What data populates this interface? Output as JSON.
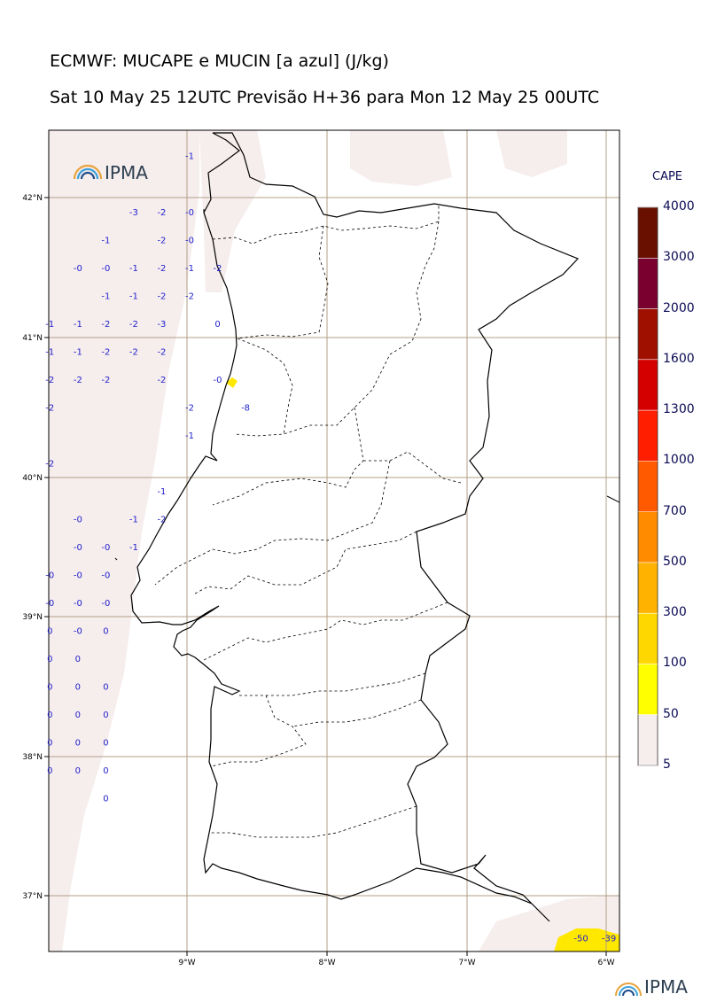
{
  "title": {
    "line1": "ECMWF: MUCAPE e MUCIN [a azul] (J/kg)",
    "line2": "Sat 10 May 25 12UTC Previsão H+36 para Mon 12 May 25 00UTC"
  },
  "logo": {
    "text": "IPMA",
    "icon": "rainbow-arc-icon"
  },
  "axes": {
    "lat_labels": [
      "42°N",
      "41°N",
      "40°N",
      "39°N",
      "38°N",
      "37°N"
    ],
    "lon_labels": [
      "9°W",
      "8°W",
      "7°W",
      "6°W"
    ],
    "lon_range": [
      -10,
      -5.9
    ],
    "lat_range": [
      36.6,
      42.48
    ]
  },
  "colorbar": {
    "title": "CAPE",
    "levels": [
      5,
      50,
      100,
      300,
      500,
      700,
      1000,
      1300,
      1600,
      2000,
      3000,
      4000
    ],
    "colors": [
      "#f6eded",
      "#ffff00",
      "#ffd700",
      "#ffb300",
      "#ff8c00",
      "#ff5a00",
      "#ff1e00",
      "#d40000",
      "#a01000",
      "#7a0030",
      "#6a1000"
    ]
  },
  "cin_values": [
    {
      "lon": -9.0,
      "lat": 42.3,
      "v": "-1"
    },
    {
      "lon": -9.4,
      "lat": 41.9,
      "v": "-3"
    },
    {
      "lon": -9.2,
      "lat": 41.9,
      "v": "-2"
    },
    {
      "lon": -9.0,
      "lat": 41.9,
      "v": "-0"
    },
    {
      "lon": -9.6,
      "lat": 41.7,
      "v": "-1"
    },
    {
      "lon": -9.2,
      "lat": 41.7,
      "v": "-2"
    },
    {
      "lon": -9.0,
      "lat": 41.7,
      "v": "-0"
    },
    {
      "lon": -9.8,
      "lat": 41.5,
      "v": "-0"
    },
    {
      "lon": -9.6,
      "lat": 41.5,
      "v": "-0"
    },
    {
      "lon": -9.4,
      "lat": 41.5,
      "v": "-1"
    },
    {
      "lon": -9.2,
      "lat": 41.5,
      "v": "-2"
    },
    {
      "lon": -9.0,
      "lat": 41.5,
      "v": "-1"
    },
    {
      "lon": -8.8,
      "lat": 41.5,
      "v": "-2"
    },
    {
      "lon": -9.6,
      "lat": 41.3,
      "v": "-1"
    },
    {
      "lon": -9.4,
      "lat": 41.3,
      "v": "-1"
    },
    {
      "lon": -9.2,
      "lat": 41.3,
      "v": "-2"
    },
    {
      "lon": -9.0,
      "lat": 41.3,
      "v": "-2"
    },
    {
      "lon": -10.0,
      "lat": 41.1,
      "v": "-1"
    },
    {
      "lon": -9.8,
      "lat": 41.1,
      "v": "-1"
    },
    {
      "lon": -9.6,
      "lat": 41.1,
      "v": "-2"
    },
    {
      "lon": -9.4,
      "lat": 41.1,
      "v": "-2"
    },
    {
      "lon": -9.2,
      "lat": 41.1,
      "v": "-3"
    },
    {
      "lon": -8.8,
      "lat": 41.1,
      "v": "0"
    },
    {
      "lon": -10.0,
      "lat": 40.9,
      "v": "-1"
    },
    {
      "lon": -9.8,
      "lat": 40.9,
      "v": "-1"
    },
    {
      "lon": -9.6,
      "lat": 40.9,
      "v": "-2"
    },
    {
      "lon": -9.4,
      "lat": 40.9,
      "v": "-2"
    },
    {
      "lon": -9.2,
      "lat": 40.9,
      "v": "-2"
    },
    {
      "lon": -10.0,
      "lat": 40.7,
      "v": "-2"
    },
    {
      "lon": -9.8,
      "lat": 40.7,
      "v": "-2"
    },
    {
      "lon": -9.6,
      "lat": 40.7,
      "v": "-2"
    },
    {
      "lon": -9.2,
      "lat": 40.7,
      "v": "-2"
    },
    {
      "lon": -8.8,
      "lat": 40.7,
      "v": "-0"
    },
    {
      "lon": -10.0,
      "lat": 40.5,
      "v": "-2"
    },
    {
      "lon": -9.0,
      "lat": 40.5,
      "v": "-2"
    },
    {
      "lon": -8.6,
      "lat": 40.5,
      "v": "-8"
    },
    {
      "lon": -9.0,
      "lat": 40.3,
      "v": "-1"
    },
    {
      "lon": -10.0,
      "lat": 40.1,
      "v": "-2"
    },
    {
      "lon": -9.2,
      "lat": 39.9,
      "v": "-1"
    },
    {
      "lon": -9.8,
      "lat": 39.7,
      "v": "-0"
    },
    {
      "lon": -9.4,
      "lat": 39.7,
      "v": "-1"
    },
    {
      "lon": -9.2,
      "lat": 39.7,
      "v": "-2"
    },
    {
      "lon": -9.8,
      "lat": 39.5,
      "v": "-0"
    },
    {
      "lon": -9.6,
      "lat": 39.5,
      "v": "-0"
    },
    {
      "lon": -9.4,
      "lat": 39.5,
      "v": "-1"
    },
    {
      "lon": -10.0,
      "lat": 39.3,
      "v": "-0"
    },
    {
      "lon": -9.8,
      "lat": 39.3,
      "v": "-0"
    },
    {
      "lon": -9.6,
      "lat": 39.3,
      "v": "-0"
    },
    {
      "lon": -10.0,
      "lat": 39.1,
      "v": "-0"
    },
    {
      "lon": -9.8,
      "lat": 39.1,
      "v": "-0"
    },
    {
      "lon": -9.6,
      "lat": 39.1,
      "v": "-0"
    },
    {
      "lon": -10.0,
      "lat": 38.9,
      "v": "0"
    },
    {
      "lon": -9.8,
      "lat": 38.9,
      "v": "-0"
    },
    {
      "lon": -9.6,
      "lat": 38.9,
      "v": "0"
    },
    {
      "lon": -10.0,
      "lat": 38.7,
      "v": "0"
    },
    {
      "lon": -9.8,
      "lat": 38.7,
      "v": "0"
    },
    {
      "lon": -10.0,
      "lat": 38.5,
      "v": "0"
    },
    {
      "lon": -9.8,
      "lat": 38.5,
      "v": "0"
    },
    {
      "lon": -9.6,
      "lat": 38.5,
      "v": "0"
    },
    {
      "lon": -10.0,
      "lat": 38.3,
      "v": "0"
    },
    {
      "lon": -9.8,
      "lat": 38.3,
      "v": "0"
    },
    {
      "lon": -9.6,
      "lat": 38.3,
      "v": "0"
    },
    {
      "lon": -10.0,
      "lat": 38.1,
      "v": "0"
    },
    {
      "lon": -9.8,
      "lat": 38.1,
      "v": "0"
    },
    {
      "lon": -9.6,
      "lat": 38.1,
      "v": "0"
    },
    {
      "lon": -10.0,
      "lat": 37.9,
      "v": "0"
    },
    {
      "lon": -9.8,
      "lat": 37.9,
      "v": "0"
    },
    {
      "lon": -9.6,
      "lat": 37.9,
      "v": "0"
    },
    {
      "lon": -9.6,
      "lat": 37.7,
      "v": "0"
    }
  ],
  "cin_values_dark": [
    {
      "lon": -6.2,
      "lat": 36.7,
      "v": "-50"
    },
    {
      "lon": -6.0,
      "lat": 36.7,
      "v": "-39"
    }
  ],
  "cin_color": "#2222cc"
}
